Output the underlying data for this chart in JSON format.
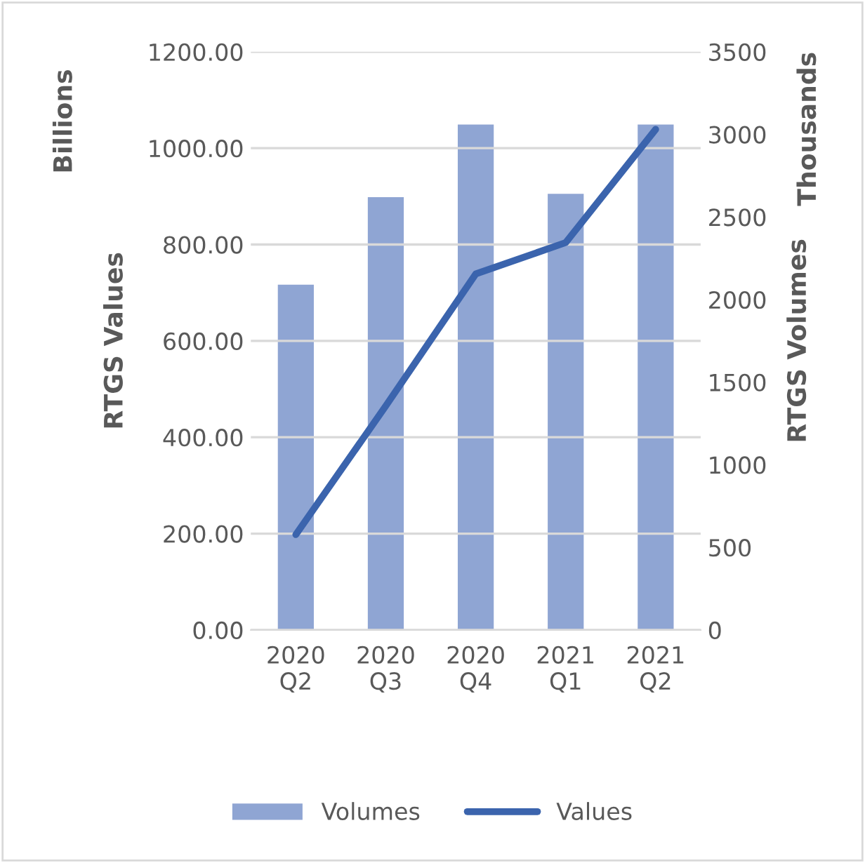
{
  "chart_data": {
    "type": "bar",
    "categories": [
      "2020\nQ2",
      "2020\nQ3",
      "2020\nQ4",
      "2021\nQ1",
      "2021\nQ2"
    ],
    "series": [
      {
        "name": "Volumes",
        "axis": "y2",
        "color": "#8fa5d3",
        "values": [
          2090,
          2620,
          3060,
          2640,
          3060
        ]
      },
      {
        "name": "Values",
        "type": "line",
        "axis": "y",
        "color": "#3b64ad",
        "values": [
          198,
          465,
          739,
          804,
          1039
        ]
      }
    ],
    "ylabel": "RTGS Values",
    "y2label": "RTGS Volumes",
    "annotations": [
      {
        "text": "Billions"
      },
      {
        "text": "Thousands"
      }
    ],
    "ylim": [
      0,
      1200
    ],
    "yticks": [
      {
        "value": 0,
        "label": "0.00"
      },
      {
        "value": 200,
        "label": "200.00"
      },
      {
        "value": 400,
        "label": "400.00"
      },
      {
        "value": 600,
        "label": "600.00"
      },
      {
        "value": 800,
        "label": "800.00"
      },
      {
        "value": 1000,
        "label": "1000.00"
      },
      {
        "value": 1200,
        "label": "1200.00"
      }
    ],
    "y2lim": [
      0,
      3500
    ],
    "y2ticks": [
      0,
      500,
      1000,
      1500,
      2000,
      2500,
      3000,
      3500
    ],
    "grid": "y",
    "legend": "bottom",
    "marker": "none",
    "line_style": "solid"
  }
}
